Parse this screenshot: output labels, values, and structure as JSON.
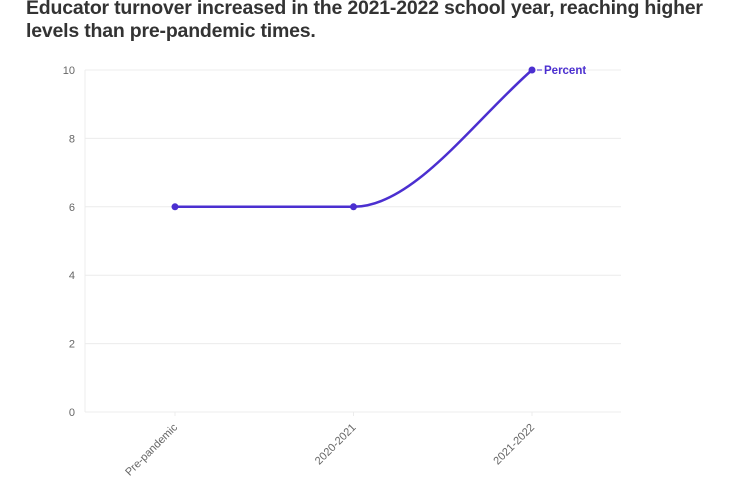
{
  "title": "Educator turnover increased in the 2021-2022 school year, reaching higher levels than pre-pandemic times.",
  "colors": {
    "series": "#4b2fd0",
    "grid": "#ececec",
    "text": "#333333",
    "tick": "#666666"
  },
  "chart_data": {
    "type": "line",
    "title": "Educator turnover increased in the 2021-2022 school year, reaching higher levels than pre-pandemic times.",
    "categories": [
      "Pre-pandemic",
      "2020-2021",
      "2021-2022"
    ],
    "series": [
      {
        "name": "Percent",
        "values": [
          6,
          6,
          10
        ]
      }
    ],
    "xlabel": "",
    "ylabel": "",
    "ylim": [
      0,
      10
    ],
    "yticks": [
      0,
      2,
      4,
      6,
      8,
      10
    ],
    "grid": true,
    "legend_position": "inline-end-label",
    "curve": "monotone"
  }
}
